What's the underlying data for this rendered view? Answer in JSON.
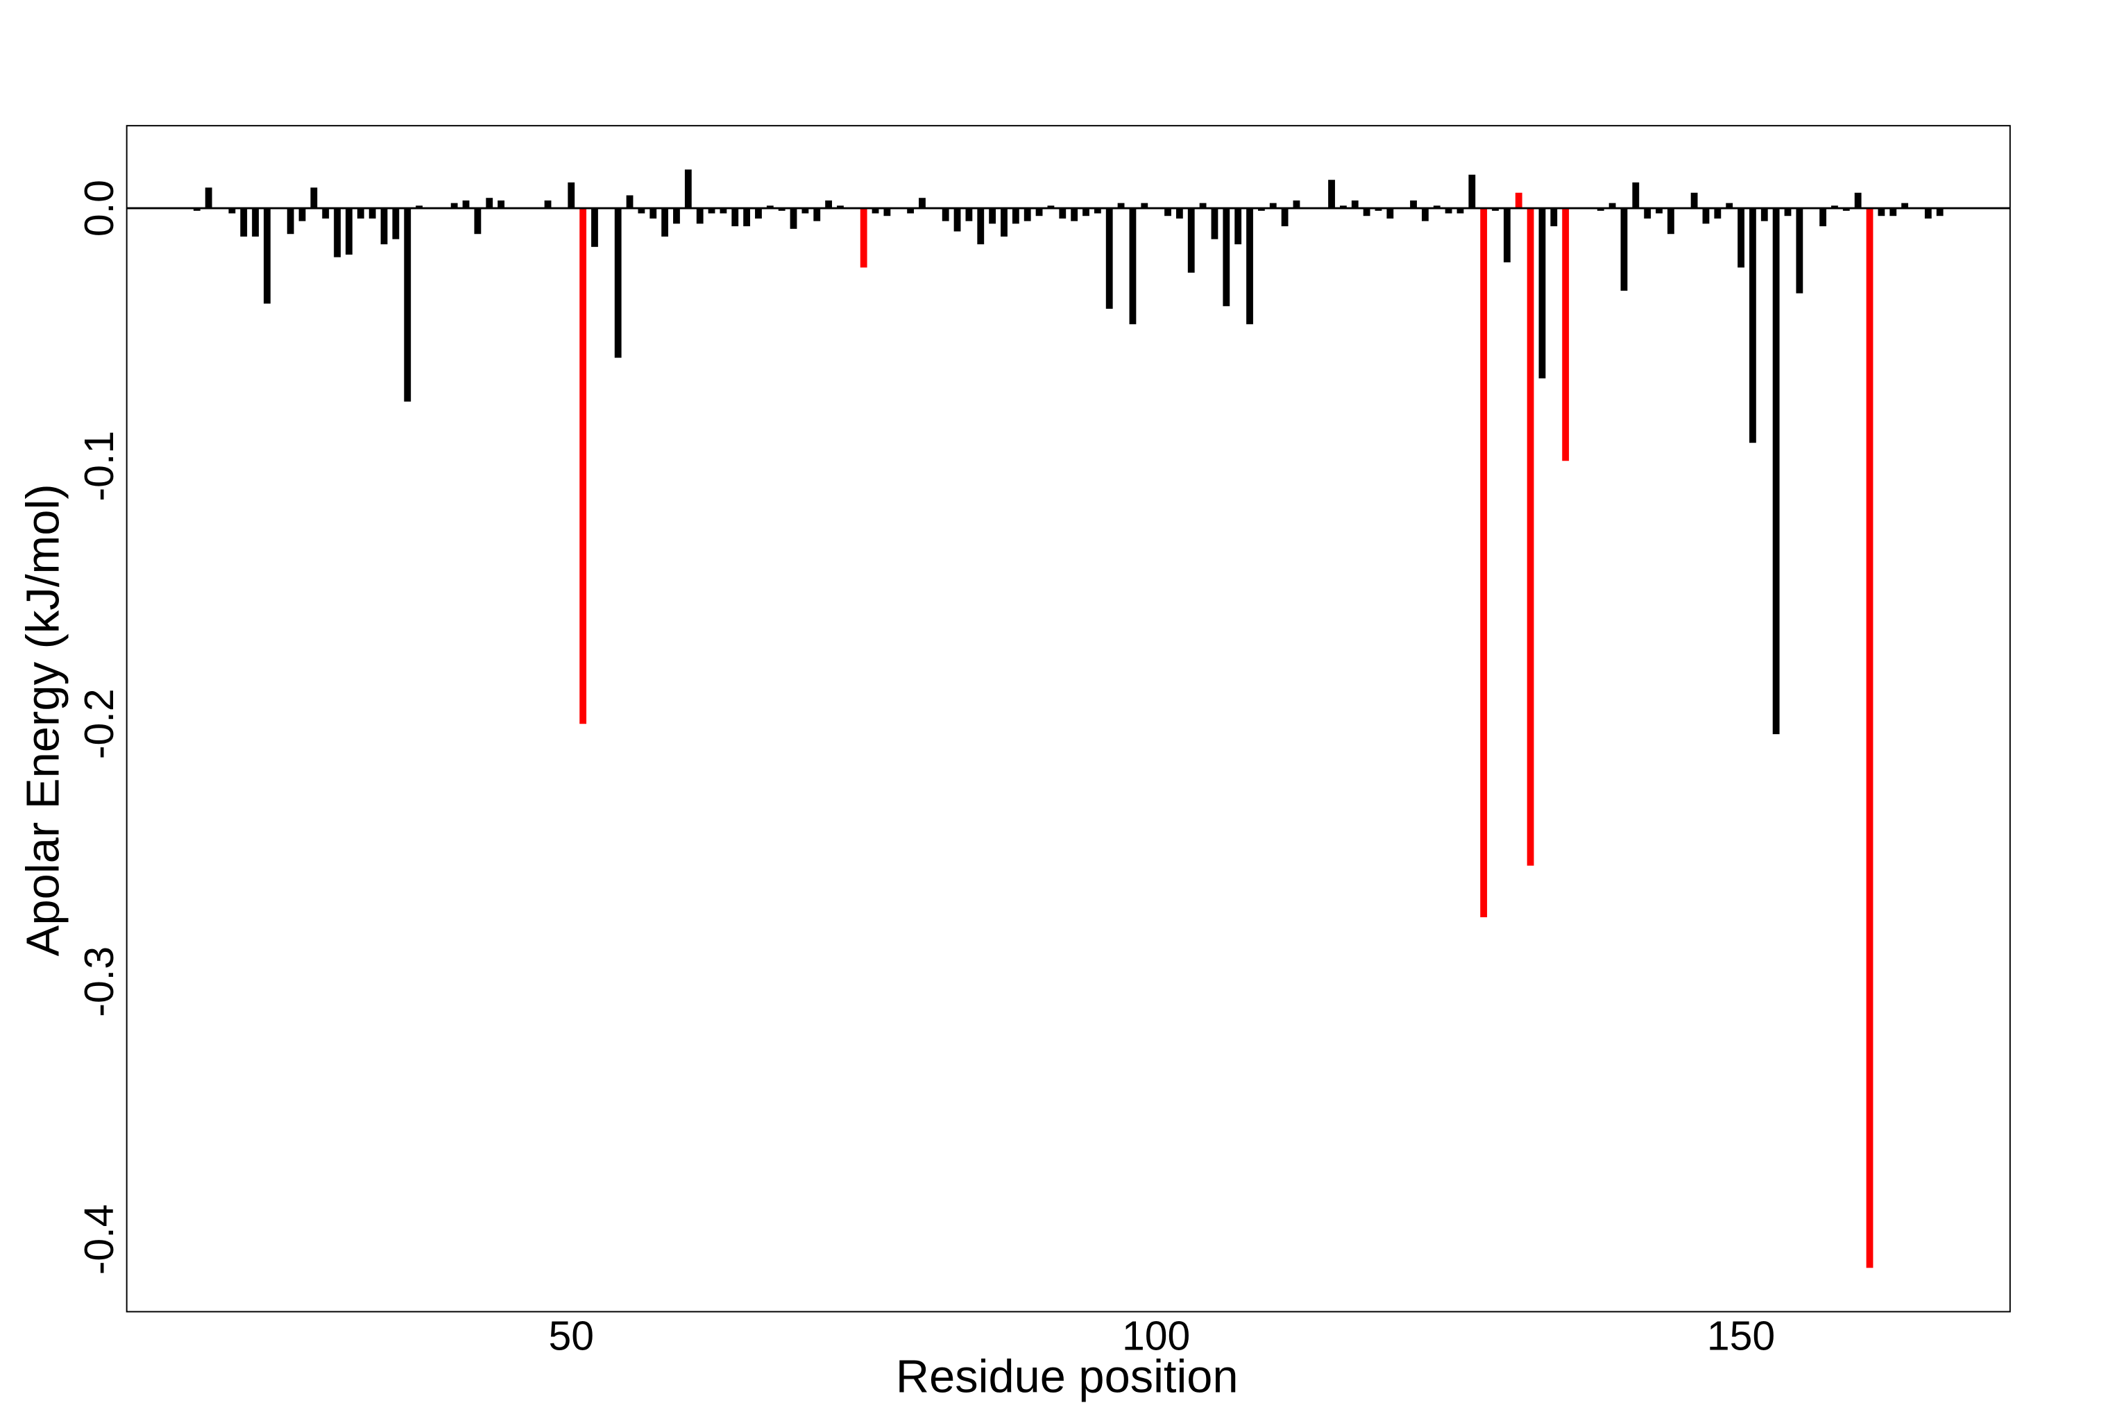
{
  "chart_data": {
    "type": "bar",
    "x_label": "Residue position",
    "y_label": "Apolar Energy (kJ/mol)",
    "x": [
      18,
      19,
      20,
      21,
      22,
      23,
      24,
      25,
      26,
      27,
      28,
      29,
      30,
      31,
      32,
      33,
      34,
      35,
      36,
      37,
      38,
      39,
      40,
      41,
      42,
      43,
      44,
      45,
      46,
      47,
      48,
      49,
      50,
      51,
      52,
      53,
      54,
      55,
      56,
      57,
      58,
      59,
      60,
      61,
      62,
      63,
      64,
      65,
      66,
      67,
      68,
      69,
      70,
      71,
      72,
      73,
      74,
      75,
      76,
      77,
      78,
      79,
      80,
      81,
      82,
      83,
      84,
      85,
      86,
      87,
      88,
      89,
      90,
      91,
      92,
      93,
      94,
      95,
      96,
      97,
      98,
      99,
      100,
      101,
      102,
      103,
      104,
      105,
      106,
      107,
      108,
      109,
      110,
      111,
      112,
      113,
      114,
      115,
      116,
      117,
      118,
      119,
      120,
      121,
      122,
      123,
      124,
      125,
      126,
      127,
      128,
      129,
      130,
      131,
      132,
      133,
      134,
      135,
      136,
      137,
      138,
      139,
      140,
      141,
      142,
      143,
      144,
      145,
      146,
      147,
      148,
      149,
      150,
      151,
      152,
      153,
      154,
      155,
      156,
      157,
      158,
      159,
      160,
      161,
      162,
      163,
      164,
      165,
      166,
      167
    ],
    "values": [
      -0.001,
      0.008,
      0,
      -0.002,
      -0.011,
      -0.011,
      -0.037,
      0,
      -0.01,
      -0.005,
      0.008,
      -0.004,
      -0.019,
      -0.018,
      -0.004,
      -0.004,
      -0.014,
      -0.012,
      -0.075,
      0.001,
      0,
      0,
      0.002,
      0.003,
      -0.01,
      0.004,
      0.003,
      0,
      0,
      0,
      0.003,
      0,
      0.01,
      -0.2,
      -0.015,
      0,
      -0.058,
      0.005,
      -0.002,
      -0.004,
      -0.011,
      -0.006,
      0.015,
      -0.006,
      -0.002,
      -0.002,
      -0.007,
      -0.007,
      -0.004,
      0.001,
      -0.001,
      -0.008,
      -0.002,
      -0.005,
      0.003,
      0.001,
      0,
      -0.023,
      -0.002,
      -0.003,
      0,
      -0.002,
      0.004,
      0,
      -0.005,
      -0.009,
      -0.005,
      -0.014,
      -0.006,
      -0.011,
      -0.006,
      -0.005,
      -0.003,
      0.001,
      -0.004,
      -0.005,
      -0.003,
      -0.002,
      -0.039,
      0.002,
      -0.045,
      0.002,
      0,
      -0.003,
      -0.004,
      -0.025,
      0.002,
      -0.012,
      -0.038,
      -0.014,
      -0.045,
      -0.001,
      0.002,
      -0.007,
      0.003,
      0,
      0,
      0.011,
      0.001,
      0.003,
      -0.003,
      -0.001,
      -0.004,
      0,
      0.003,
      -0.005,
      0.001,
      -0.002,
      -0.002,
      0.013,
      -0.275,
      -0.001,
      -0.021,
      0.006,
      -0.255,
      -0.066,
      -0.007,
      -0.098,
      0,
      0,
      -0.001,
      0.002,
      -0.032,
      0.01,
      -0.004,
      -0.002,
      -0.01,
      0,
      0.006,
      -0.006,
      -0.004,
      0.002,
      -0.023,
      -0.091,
      -0.005,
      -0.204,
      -0.003,
      -0.033,
      0,
      -0.007,
      0.001,
      -0.001,
      0.006,
      -0.411,
      -0.003,
      -0.003,
      0.002,
      0,
      -0.004,
      -0.003
    ],
    "color": "#000000",
    "highlight_color": "#ff0000",
    "highlighted": [
      51,
      75,
      128,
      131,
      132,
      135,
      161
    ],
    "xlim": [
      12,
      173
    ],
    "ylim": [
      -0.428,
      0.032
    ],
    "xticks": [
      50,
      100,
      150
    ],
    "yticks": [
      {
        "value": 0,
        "label": "0.0"
      },
      -0.1,
      -0.2,
      -0.3,
      -0.4
    ],
    "grid": false
  }
}
